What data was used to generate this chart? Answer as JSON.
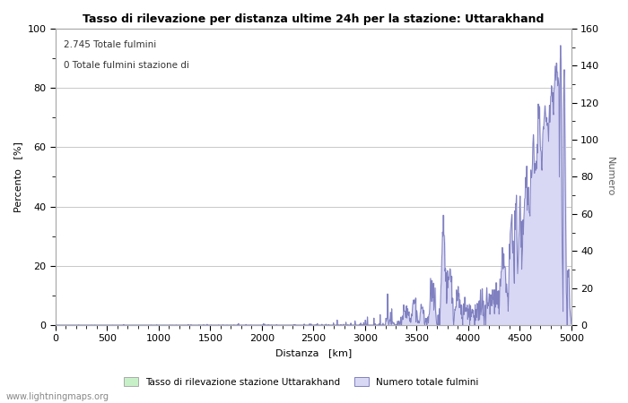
{
  "title": "Tasso di rilevazione per distanza ultime 24h per la stazione: Uttarakhand",
  "xlabel": "Distanza   [km]",
  "ylabel_left": "Percento   [%]",
  "ylabel_right": "Numero",
  "annotation_line1": "2.745 Totale fulmini",
  "annotation_line2": "0 Totale fulmini stazione di",
  "xlim": [
    0,
    5000
  ],
  "ylim_left": [
    0,
    100
  ],
  "ylim_right": [
    0,
    160
  ],
  "xticks": [
    0,
    500,
    1000,
    1500,
    2000,
    2500,
    3000,
    3500,
    4000,
    4500,
    5000
  ],
  "yticks_left": [
    0,
    20,
    40,
    60,
    80,
    100
  ],
  "yticks_right": [
    0,
    20,
    40,
    60,
    80,
    100,
    120,
    140,
    160
  ],
  "legend_label_green": "Tasso di rilevazione stazione Uttarakhand",
  "legend_label_blue": "Numero totale fulmini",
  "fill_color_blue": "#d8d8f5",
  "line_color_blue": "#8080c0",
  "fill_color_green": "#c8f0c8",
  "line_color_green": "#80c080",
  "watermark": "www.lightningmaps.org",
  "background_color": "#ffffff",
  "grid_color": "#c8c8c8",
  "title_fontsize": 9,
  "label_fontsize": 8,
  "tick_fontsize": 8,
  "annot_fontsize": 7.5
}
